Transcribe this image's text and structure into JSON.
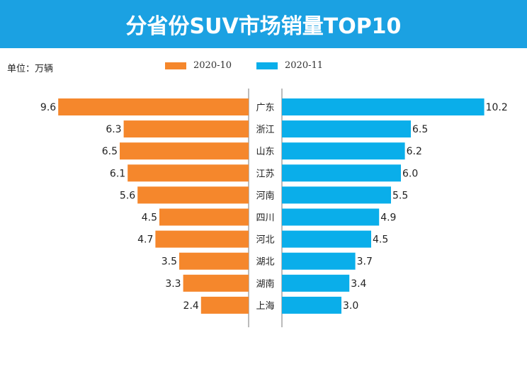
{
  "header": {
    "title": "分省份SUV市场销量TOP10"
  },
  "unit_label": "单位：万辆",
  "colors": {
    "header_bg": "#1ba1e2",
    "left_series": "#f5872c",
    "right_series": "#0aaeea"
  },
  "chart_data": {
    "type": "bar",
    "orientation": "horizontal-butterfly",
    "title": "分省份SUV市场销量TOP10",
    "categories": [
      "广东",
      "浙江",
      "山东",
      "江苏",
      "河南",
      "四川",
      "河北",
      "湖北",
      "湖南",
      "上海"
    ],
    "series": [
      {
        "name": "2020-10",
        "values": [
          9.6,
          6.3,
          6.5,
          6.1,
          5.6,
          4.5,
          4.7,
          3.5,
          3.3,
          2.4
        ]
      },
      {
        "name": "2020-11",
        "values": [
          10.2,
          6.5,
          6.2,
          6.0,
          5.5,
          4.9,
          4.5,
          3.7,
          3.4,
          3.0
        ]
      }
    ],
    "value_labels": {
      "left": [
        "9.6",
        "6.3",
        "6.5",
        "6.1",
        "5.6",
        "4.5",
        "4.7",
        "3.5",
        "3.3",
        "2.4"
      ],
      "right": [
        "10.2",
        "6.5",
        "6.2",
        "6.0",
        "5.5",
        "4.9",
        "4.5",
        "3.7",
        "3.4",
        "3.0"
      ]
    },
    "xlim": [
      0,
      10.2
    ],
    "legend_position": "top-center",
    "grid": false
  }
}
